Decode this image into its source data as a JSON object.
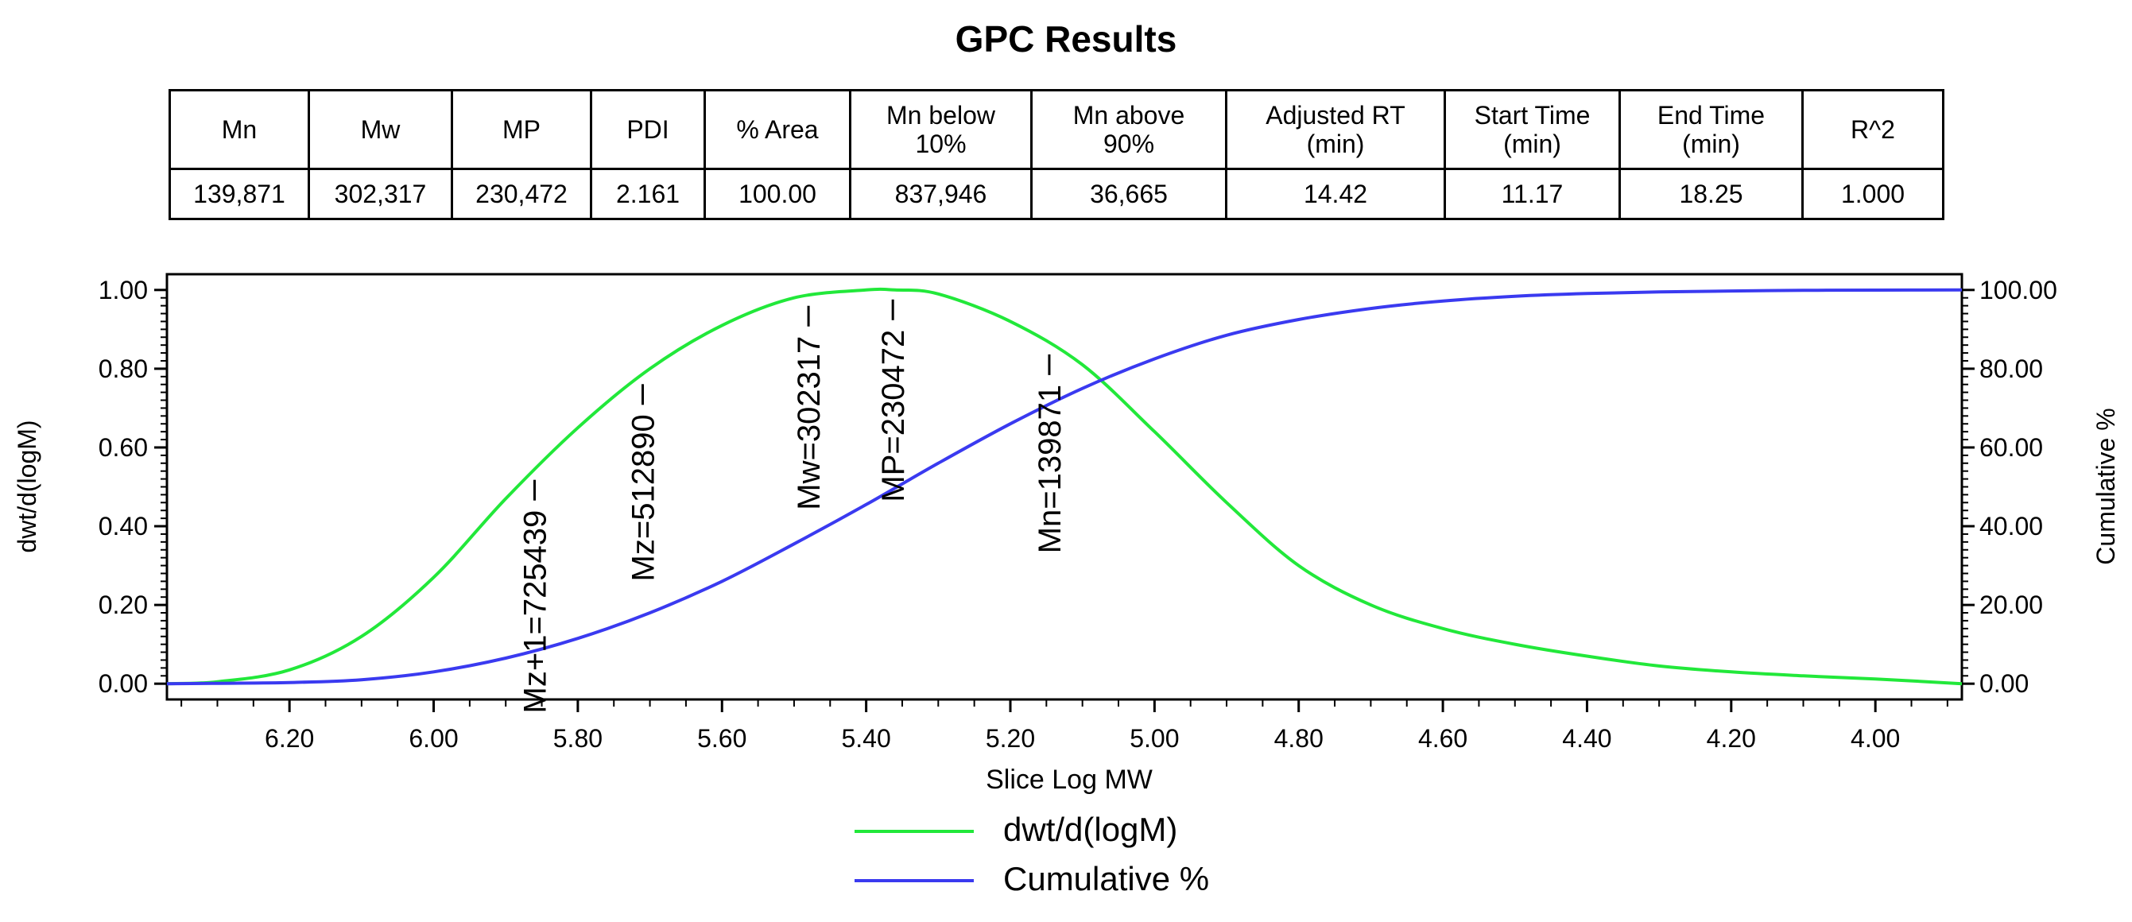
{
  "title": "GPC Results",
  "table": {
    "headers": [
      "Mn",
      "Mw",
      "MP",
      "PDI",
      "% Area",
      "Mn below\n10%",
      "Mn above\n90%",
      "Adjusted RT\n(min)",
      "Start Time\n(min)",
      "End Time\n(min)",
      "R^2"
    ],
    "values": [
      "139,871",
      "302,317",
      "230,472",
      "2.161",
      "100.00",
      "837,946",
      "36,665",
      "14.42",
      "11.17",
      "18.25",
      "1.000"
    ]
  },
  "chart_data": {
    "type": "line",
    "xlabel": "Slice Log MW",
    "ylabel_left": "dwt/d(logM)",
    "ylabel_right": "Cumulative %",
    "xlim": [
      6.37,
      3.88
    ],
    "ylim_left": [
      -0.04,
      1.04
    ],
    "ylim_right": [
      -4,
      104
    ],
    "x_ticks": [
      "6.20",
      "6.00",
      "5.80",
      "5.60",
      "5.40",
      "5.20",
      "5.00",
      "4.80",
      "4.60",
      "4.40",
      "4.20",
      "4.00"
    ],
    "x_tick_values": [
      6.2,
      6.0,
      5.8,
      5.6,
      5.4,
      5.2,
      5.0,
      4.8,
      4.6,
      4.4,
      4.2,
      4.0
    ],
    "y_left_ticks": [
      "0.00",
      "0.20",
      "0.40",
      "0.60",
      "0.80",
      "1.00"
    ],
    "y_left_tick_values": [
      0,
      0.2,
      0.4,
      0.6,
      0.8,
      1.0
    ],
    "y_right_ticks": [
      "0.00",
      "20.00",
      "40.00",
      "60.00",
      "80.00",
      "100.00"
    ],
    "y_right_tick_values": [
      0,
      20,
      40,
      60,
      80,
      100
    ],
    "series": [
      {
        "name": "dwt/d(logM)",
        "color": "#22e83a",
        "axis": "left",
        "x": [
          6.37,
          6.3,
          6.2,
          6.1,
          6.0,
          5.9,
          5.8,
          5.7,
          5.6,
          5.5,
          5.4,
          5.36,
          5.3,
          5.2,
          5.1,
          5.0,
          4.9,
          4.8,
          4.7,
          4.6,
          4.5,
          4.4,
          4.3,
          4.2,
          4.1,
          4.0,
          3.88
        ],
        "y": [
          0.0,
          0.005,
          0.035,
          0.12,
          0.27,
          0.47,
          0.65,
          0.8,
          0.91,
          0.98,
          1.0,
          1.0,
          0.99,
          0.92,
          0.81,
          0.64,
          0.46,
          0.3,
          0.2,
          0.14,
          0.1,
          0.07,
          0.045,
          0.03,
          0.02,
          0.012,
          0.0
        ]
      },
      {
        "name": "Cumulative %",
        "color": "#3a3af0",
        "axis": "right",
        "x": [
          6.37,
          6.3,
          6.2,
          6.1,
          6.0,
          5.9,
          5.8,
          5.7,
          5.6,
          5.5,
          5.4,
          5.3,
          5.2,
          5.1,
          5.0,
          4.9,
          4.8,
          4.7,
          4.6,
          4.5,
          4.4,
          4.3,
          4.2,
          4.1,
          4.0,
          3.88
        ],
        "y": [
          0.0,
          0.1,
          0.3,
          1.0,
          3.0,
          6.5,
          11.5,
          18.0,
          26.0,
          35.5,
          45.5,
          56.0,
          66.0,
          75.0,
          82.5,
          88.5,
          92.5,
          95.3,
          97.2,
          98.4,
          99.1,
          99.5,
          99.75,
          99.9,
          99.97,
          100.0
        ]
      }
    ],
    "annotations": [
      {
        "label": "Mz+1=725439",
        "x": 5.86
      },
      {
        "label": "Mz=512890",
        "x": 5.71
      },
      {
        "label": "Mw=302317",
        "x": 5.48
      },
      {
        "label": "MP=230472",
        "x": 5.363
      },
      {
        "label": "Mn=139871",
        "x": 5.146
      }
    ],
    "legend": [
      {
        "label": "dwt/d(logM)",
        "color": "#22e83a"
      },
      {
        "label": "Cumulative %",
        "color": "#3a3af0"
      }
    ]
  }
}
